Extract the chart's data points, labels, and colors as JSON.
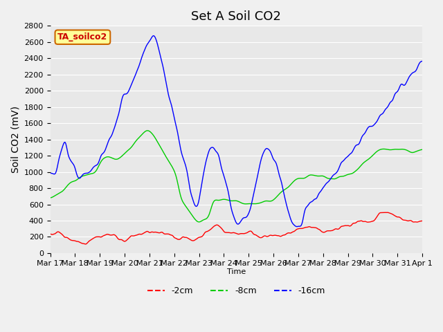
{
  "title": "Set A Soil CO2",
  "ylabel": "Soil CO2 (mV)",
  "xlabel": "Time",
  "ylim": [
    0,
    2800
  ],
  "bg_color": "#e8e8e8",
  "plot_bg": "#e8e8e8",
  "legend_label": "TA_soilco2",
  "line_colors": {
    "red": "#ff0000",
    "green": "#00cc00",
    "blue": "#0000ff"
  },
  "legend_items": [
    "-2cm",
    "-8cm",
    "-16cm"
  ],
  "x_tick_labels": [
    "Mar 17",
    "Mar 18",
    "Mar 19",
    "Mar 20",
    "Mar 21",
    "Mar 22",
    "Mar 23",
    "Mar 24",
    "Mar 25",
    "Mar 26",
    "Mar 27",
    "Mar 28",
    "Mar 29",
    "Mar 30",
    "Mar 31",
    "Apr 1"
  ],
  "tick_fontsize": 8,
  "ylabel_fontsize": 10,
  "title_fontsize": 13
}
